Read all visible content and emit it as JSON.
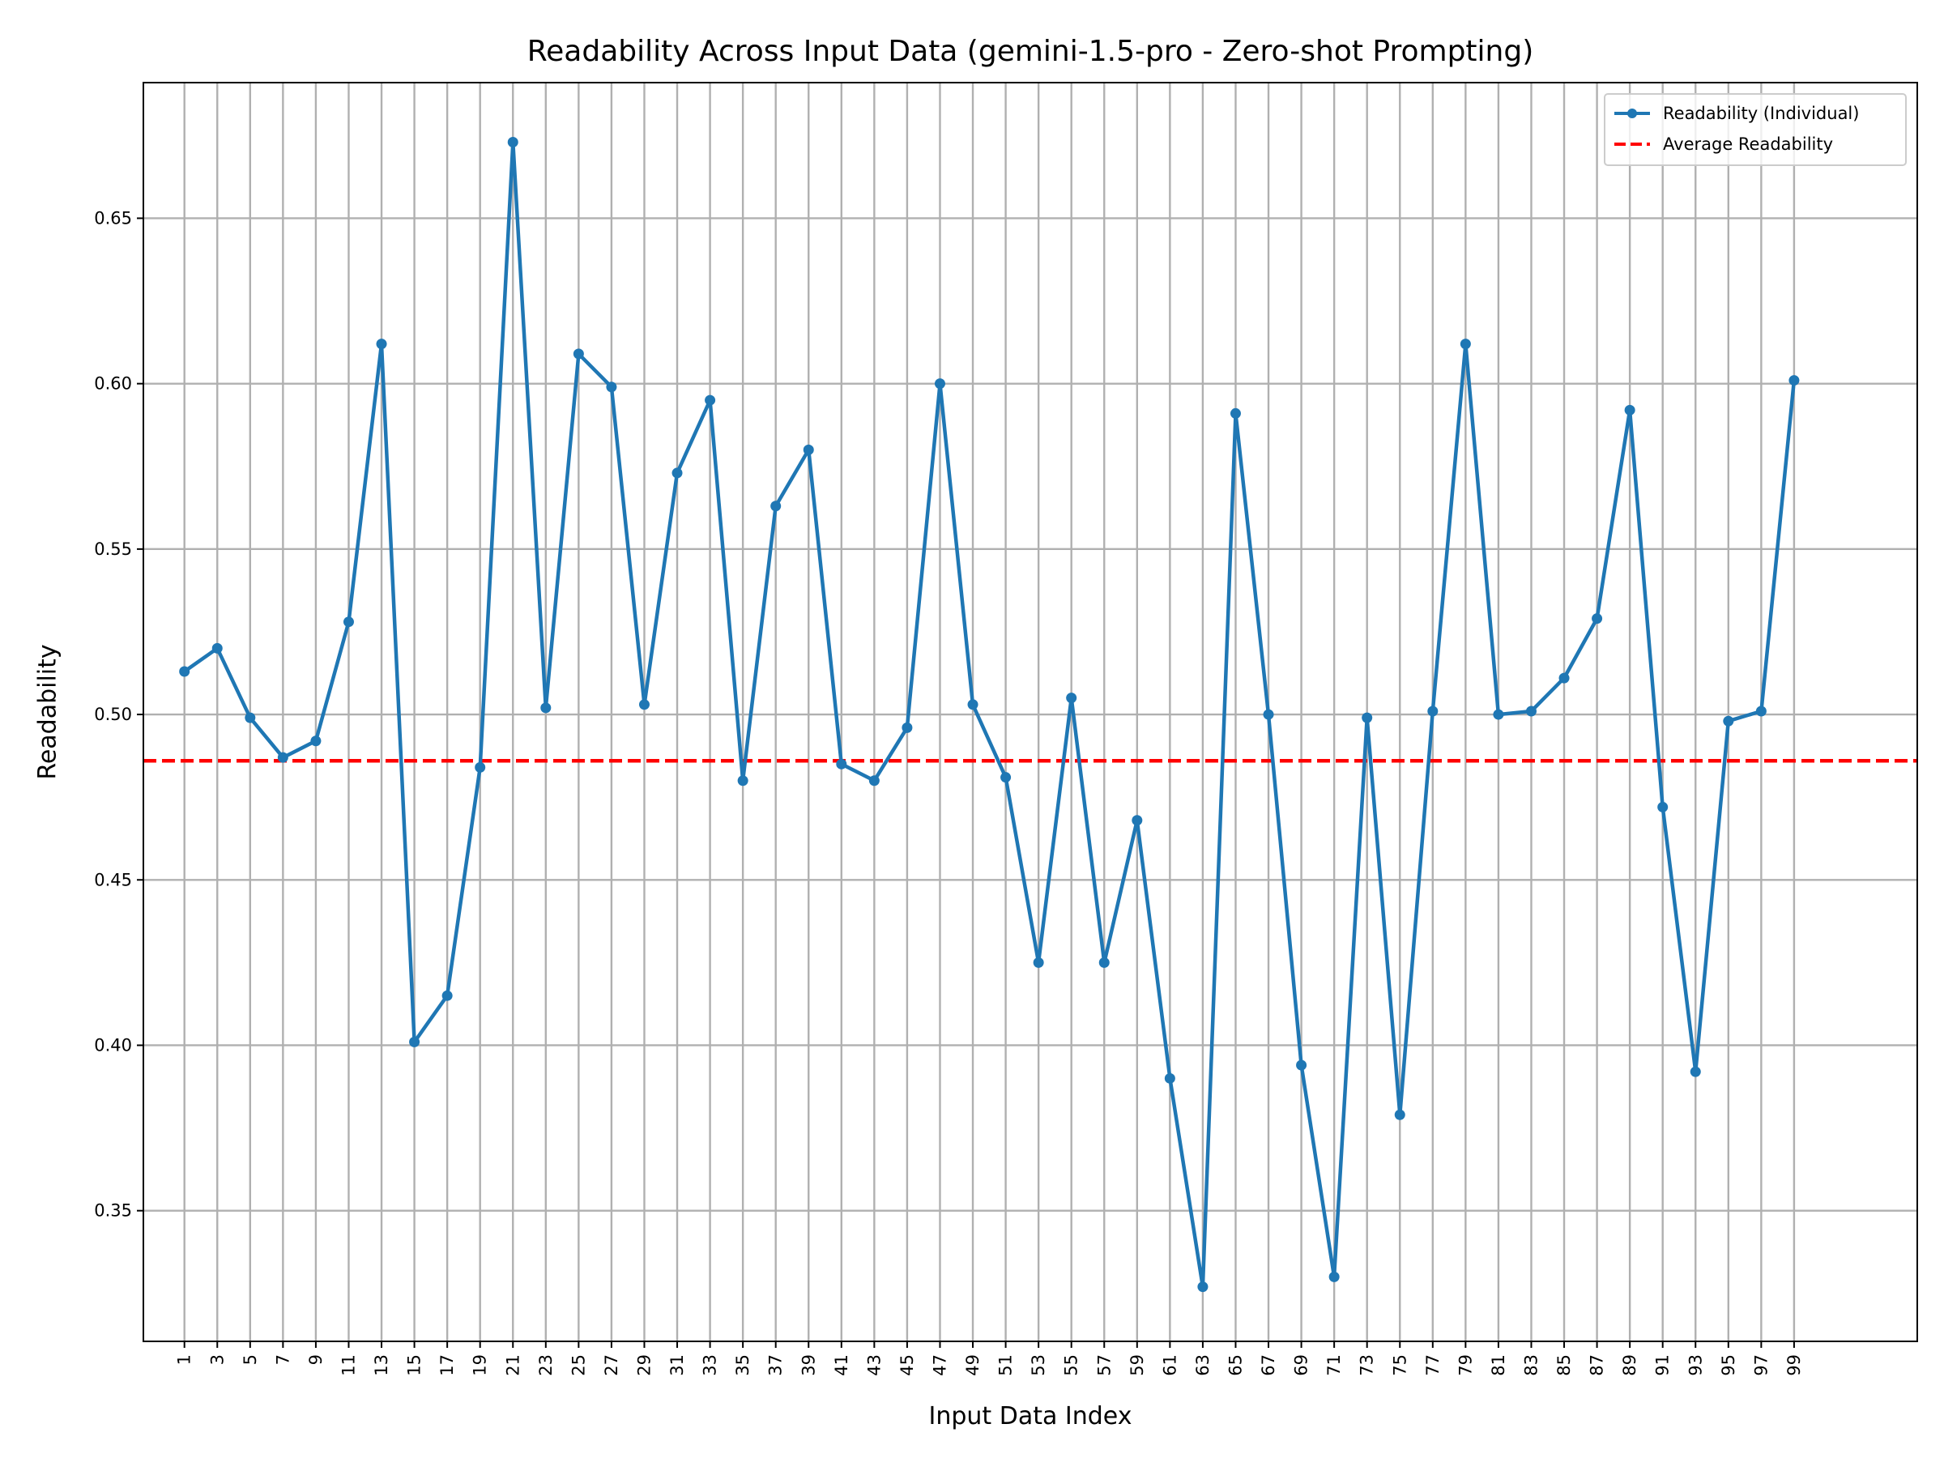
{
  "chart_data": {
    "type": "line",
    "title": "Readability Across Input Data (gemini-1.5-pro - Zero-shot Prompting)",
    "xlabel": "Input Data Index",
    "ylabel": "Readability",
    "xlim": [
      -1.5,
      106.5
    ],
    "ylim": [
      0.3105,
      0.691
    ],
    "yticks": [
      0.35,
      0.4,
      0.45,
      0.5,
      0.55,
      0.6,
      0.65
    ],
    "ytick_labels": [
      "0.35",
      "0.40",
      "0.45",
      "0.50",
      "0.55",
      "0.60",
      "0.65"
    ],
    "xticks": [
      1,
      3,
      5,
      7,
      9,
      11,
      13,
      15,
      17,
      19,
      21,
      23,
      25,
      27,
      29,
      31,
      33,
      35,
      37,
      39,
      41,
      43,
      45,
      47,
      49,
      51,
      53,
      55,
      57,
      59,
      61,
      63,
      65,
      67,
      69,
      71,
      73,
      75,
      77,
      79,
      81,
      83,
      85,
      87,
      89,
      91,
      93,
      95,
      97,
      99
    ],
    "grid": true,
    "legend_position": "top-right",
    "series": [
      {
        "name": "Readability (Individual)",
        "color": "#1f77b4",
        "style": "line-with-markers",
        "x": [
          1,
          3,
          5,
          7,
          9,
          11,
          13,
          15,
          17,
          19,
          21,
          23,
          25,
          27,
          29,
          31,
          33,
          35,
          37,
          39,
          41,
          43,
          45,
          47,
          49,
          51,
          53,
          55,
          57,
          59,
          61,
          63,
          65,
          67,
          69,
          71,
          73,
          75,
          77,
          79,
          81,
          83,
          85,
          87,
          89,
          91,
          93,
          95,
          97,
          99
        ],
        "values": [
          0.513,
          0.52,
          0.499,
          0.487,
          0.492,
          0.528,
          0.612,
          0.401,
          0.415,
          0.484,
          0.673,
          0.502,
          0.609,
          0.599,
          0.503,
          0.573,
          0.595,
          0.48,
          0.563,
          0.58,
          0.485,
          0.48,
          0.496,
          0.6,
          0.503,
          0.481,
          0.425,
          0.505,
          0.425,
          0.468,
          0.39,
          0.327,
          0.591,
          0.5,
          0.394,
          0.33,
          0.499,
          0.379,
          0.501,
          0.612,
          0.5,
          0.501,
          0.511,
          0.529,
          0.592,
          0.472,
          0.392,
          0.498,
          0.501,
          0.601
        ]
      },
      {
        "name": "Average Readability",
        "color": "#ff0000",
        "style": "dashed-horizontal",
        "value": 0.486
      }
    ]
  }
}
